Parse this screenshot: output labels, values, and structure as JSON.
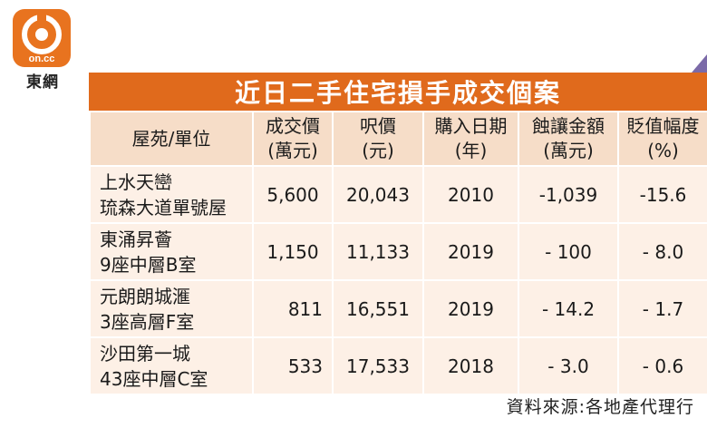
{
  "brand": {
    "logo_text": "on.cc",
    "caption": "東網",
    "accent": "#e06a1c"
  },
  "table": {
    "title": "近日二手住宅損手成交個案",
    "headers": [
      {
        "line1": "屋苑/單位",
        "line2": ""
      },
      {
        "line1": "成交價",
        "line2": "(萬元)"
      },
      {
        "line1": "呎價",
        "line2": "(元)"
      },
      {
        "line1": "購入日期",
        "line2": "(年)"
      },
      {
        "line1": "蝕讓金額",
        "line2": "(萬元)"
      },
      {
        "line1": "貶值幅度",
        "line2": "(%)"
      }
    ],
    "rows": [
      {
        "estate": "上水天巒",
        "unit": "琉森大道單號屋",
        "price": "5,600",
        "psf": "20,043",
        "year": "2010",
        "loss": "-1,039",
        "drop": "-15.6"
      },
      {
        "estate": "東涌昇薈",
        "unit": "9座中層B室",
        "price": "1,150",
        "psf": "11,133",
        "year": "2019",
        "loss": "- 100",
        "drop": "- 8.0"
      },
      {
        "estate": "元朗朗城滙",
        "unit": "3座高層F室",
        "price": "811",
        "psf": "16,551",
        "year": "2019",
        "loss": "- 14.2",
        "drop": "- 1.7"
      },
      {
        "estate": "沙田第一城",
        "unit": "43座中層C室",
        "price": "533",
        "psf": "17,533",
        "year": "2018",
        "loss": "- 3.0",
        "drop": "- 0.6"
      }
    ],
    "source": "資料來源:各地產代理行"
  }
}
